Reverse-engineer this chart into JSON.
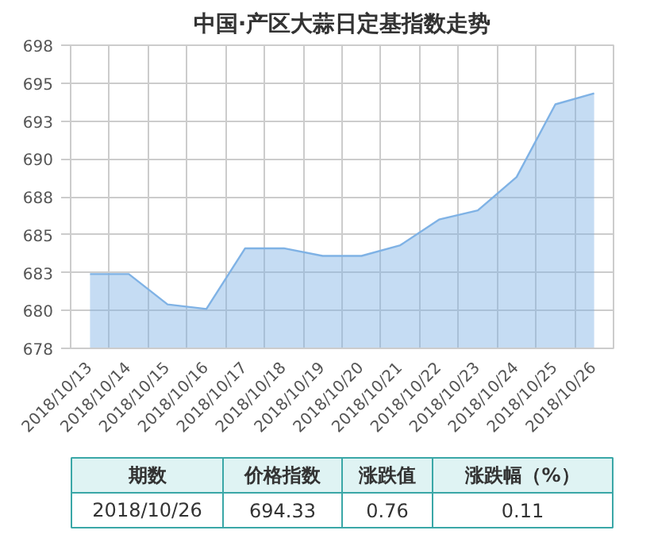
{
  "chart_data": {
    "type": "area",
    "title": "中国·产区大蒜日定基指数走势",
    "categories": [
      "2018/10/13",
      "2018/10/14",
      "2018/10/15",
      "2018/10/16",
      "2018/10/17",
      "2018/10/18",
      "2018/10/19",
      "2018/10/20",
      "2018/10/21",
      "2018/10/22",
      "2018/10/23",
      "2018/10/24",
      "2018/10/25",
      "2018/10/26"
    ],
    "series": [
      {
        "color": "#7fb2e5",
        "values": [
          682.4,
          682.4,
          680.4,
          680.1,
          684.1,
          684.1,
          683.6,
          683.6,
          684.3,
          686.0,
          686.6,
          688.8,
          693.6,
          694.33
        ]
      }
    ],
    "ylim": [
      677.5,
      697.5
    ],
    "yticks": [
      {
        "value": 677.5,
        "label": "678"
      },
      680,
      {
        "value": 682.5,
        "label": "683"
      },
      685,
      {
        "value": 687.5,
        "label": "688"
      },
      690,
      {
        "value": 692.5,
        "label": "693"
      },
      695,
      {
        "value": 697.5,
        "label": "698"
      }
    ],
    "grid": true,
    "annotations": [
      "期数",
      "价格指数",
      "涨跌值",
      "涨跌幅（%）",
      "2018/10/26",
      "694.33",
      "0.76",
      "0.11"
    ]
  }
}
